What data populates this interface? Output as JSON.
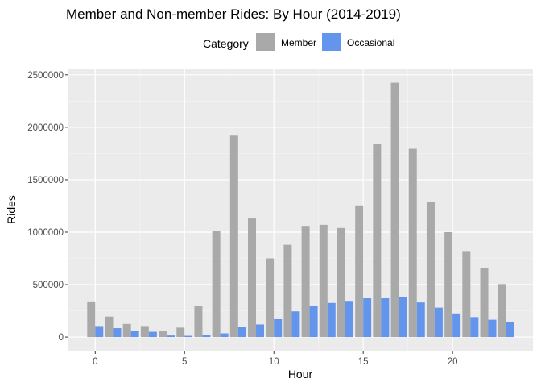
{
  "chart_data": {
    "type": "bar",
    "title": "Member and Non-member Rides: By Hour (2014-2019)",
    "xlabel": "Hour",
    "ylabel": "Rides",
    "xlim": [
      -1.5,
      24.5
    ],
    "ylim": [
      -130000,
      2560000
    ],
    "x_ticks": [
      0,
      5,
      10,
      15,
      20
    ],
    "y_ticks": [
      0,
      500000,
      1000000,
      1500000,
      2000000,
      2500000
    ],
    "grid": true,
    "legend": {
      "title": "Category",
      "position": "top",
      "entries": [
        "Member",
        "Occasional"
      ]
    },
    "categories": [
      0,
      1,
      2,
      3,
      4,
      5,
      6,
      7,
      8,
      9,
      10,
      11,
      12,
      13,
      14,
      15,
      16,
      17,
      18,
      19,
      20,
      21,
      22,
      23
    ],
    "series": [
      {
        "name": "Member",
        "color": "#a9a9a9",
        "values": [
          340000,
          195000,
          125000,
          105000,
          55000,
          90000,
          295000,
          1010000,
          1920000,
          1130000,
          750000,
          880000,
          1060000,
          1070000,
          1040000,
          1255000,
          1840000,
          2425000,
          1795000,
          1285000,
          1000000,
          820000,
          660000,
          505000
        ]
      },
      {
        "name": "Occasional",
        "color": "#6495ed",
        "values": [
          105000,
          85000,
          60000,
          50000,
          15000,
          12000,
          18000,
          35000,
          95000,
          120000,
          170000,
          245000,
          295000,
          325000,
          345000,
          370000,
          375000,
          385000,
          330000,
          280000,
          225000,
          190000,
          165000,
          140000
        ]
      }
    ]
  }
}
